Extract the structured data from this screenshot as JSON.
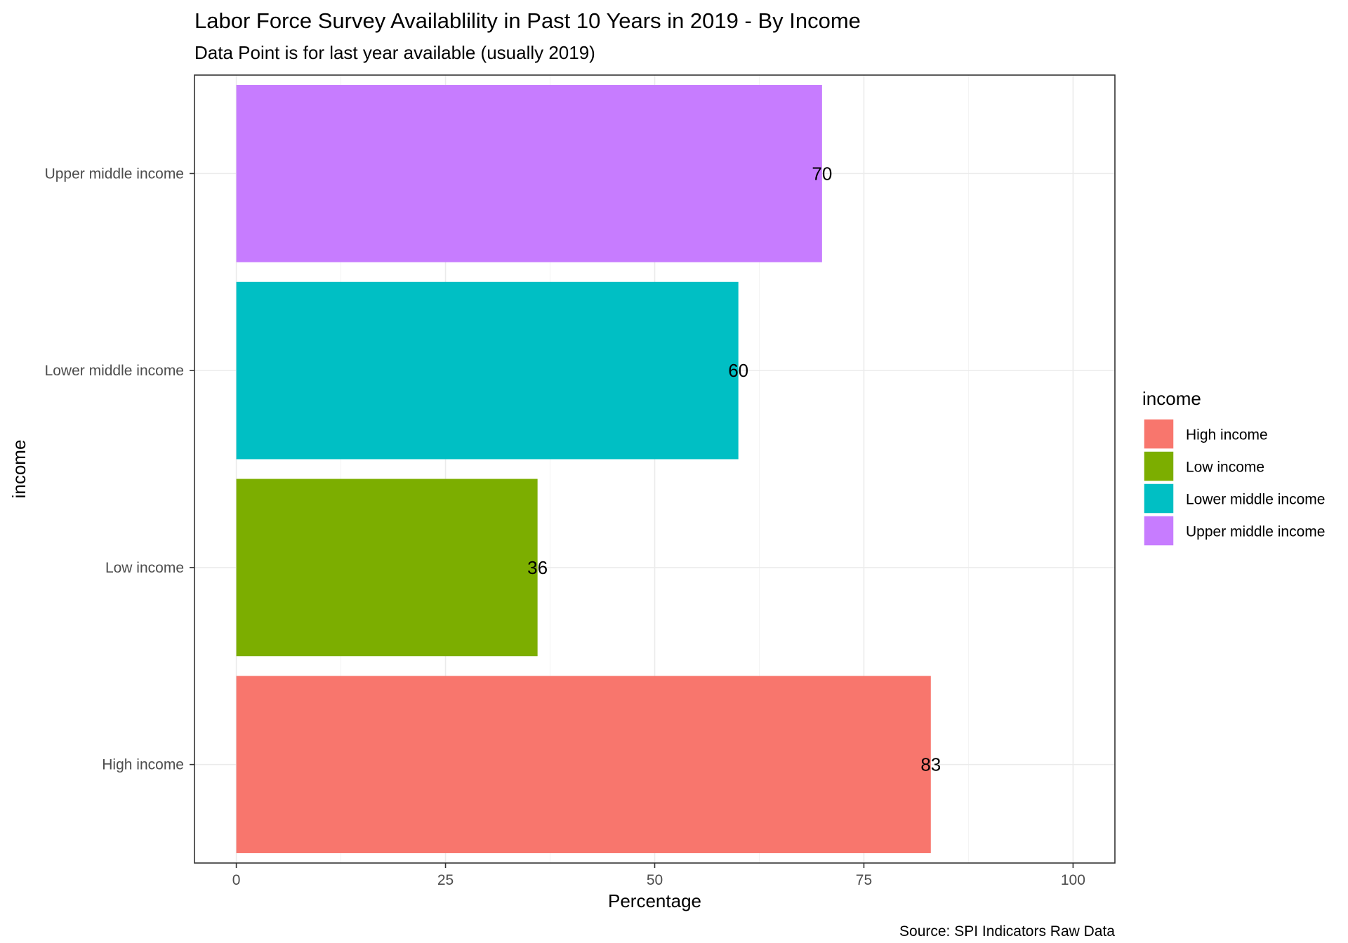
{
  "chart_data": {
    "type": "bar",
    "orientation": "horizontal",
    "title": "Labor Force Survey Availablility in Past 10 Years in 2019 - By Income",
    "subtitle": "Data Point is for last year available (usually 2019)",
    "xlabel": "Percentage",
    "ylabel": "income",
    "caption": "Source: SPI Indicators Raw Data",
    "categories": [
      "High income",
      "Low income",
      "Lower middle income",
      "Upper middle income"
    ],
    "values": [
      83,
      36,
      60,
      70
    ],
    "data_labels": [
      "83",
      "36",
      "60",
      "70"
    ],
    "colors": [
      "#F8766D",
      "#7CAE00",
      "#00BFC4",
      "#C77CFF"
    ],
    "xlim": [
      -5,
      105
    ],
    "xticks": [
      0,
      25,
      50,
      75,
      100
    ],
    "xtick_labels": [
      "0",
      "25",
      "50",
      "75",
      "100"
    ],
    "grid": true,
    "legend": {
      "title": "income",
      "position": "right",
      "items": [
        "High income",
        "Low income",
        "Lower middle income",
        "Upper middle income"
      ]
    }
  }
}
